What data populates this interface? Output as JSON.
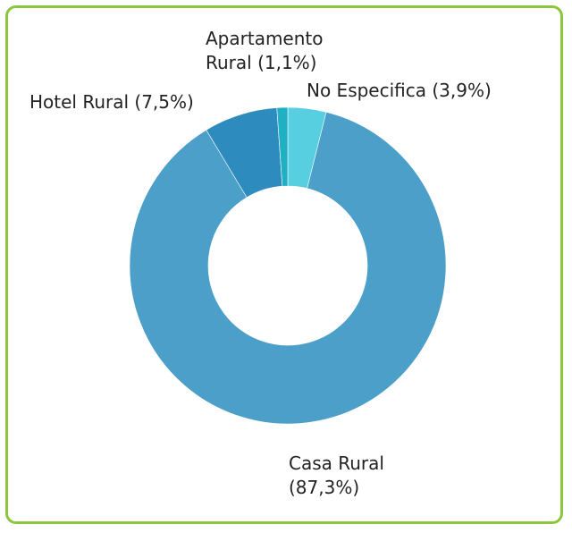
{
  "colors": {
    "border": "#8cc63f",
    "text": "#222222"
  },
  "chart_data": {
    "type": "pie",
    "variant": "donut",
    "title": "",
    "slices": [
      {
        "label_lines": [
          "No Especifica (3,9%)"
        ],
        "value": 3.9,
        "color": "#58cfe0"
      },
      {
        "label_lines": [
          "Casa Rural",
          "(87,3%)"
        ],
        "value": 87.3,
        "color": "#4b9fc8"
      },
      {
        "label_lines": [
          "Hotel Rural (7,5%)"
        ],
        "value": 7.5,
        "color": "#2e8bbd"
      },
      {
        "label_lines": [
          "Apartamento",
          "Rural (1,1%)"
        ],
        "value": 1.1,
        "color": "#1fb0c4"
      }
    ]
  }
}
